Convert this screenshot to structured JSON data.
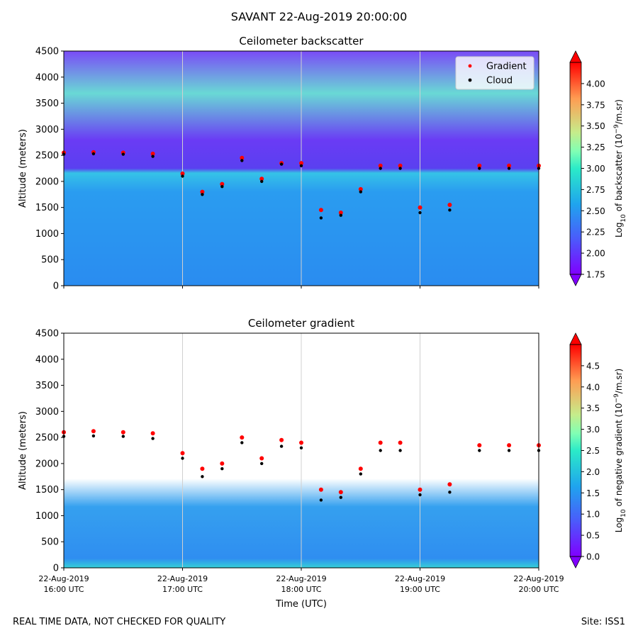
{
  "figure": {
    "suptitle": "SAVANT 22-Aug-2019 20:00:00",
    "footer_left": "REAL TIME DATA, NOT CHECKED FOR QUALITY",
    "footer_right": "Site: ISS1"
  },
  "chart_data": [
    {
      "type": "heatmap",
      "title": "Ceilometer backscatter",
      "xlabel": "",
      "ylabel": "Altitude (meters)",
      "ylim": [
        0,
        4500
      ],
      "yticks": [
        0,
        500,
        1000,
        1500,
        2000,
        2500,
        3000,
        3500,
        4000,
        4500
      ],
      "xlim": [
        "2019-08-22T16:00",
        "2019-08-22T20:00"
      ],
      "xtick_labels": [],
      "grid": "vertical lines at hourly ticks",
      "colormap": "rainbow",
      "colorbar": {
        "label": "Log10 of backscatter (10^-9/m.sr)",
        "range": [
          1.75,
          4.25
        ],
        "ticks": [
          "1.75",
          "2.00",
          "2.25",
          "2.50",
          "2.75",
          "3.00",
          "3.25",
          "3.50",
          "3.75",
          "4.00"
        ],
        "extend": "both"
      },
      "legend": {
        "placement": "upper-right",
        "entries": [
          {
            "name": "Gradient",
            "color": "#ff0000"
          },
          {
            "name": "Cloud",
            "color": "#000000"
          }
        ]
      },
      "series": [
        {
          "name": "Gradient",
          "color": "#ff0000",
          "points": [
            {
              "x": "16:00",
              "y": 2550
            },
            {
              "x": "16:15",
              "y": 2560
            },
            {
              "x": "16:30",
              "y": 2550
            },
            {
              "x": "16:45",
              "y": 2530
            },
            {
              "x": "17:00",
              "y": 2150
            },
            {
              "x": "17:10",
              "y": 1800
            },
            {
              "x": "17:20",
              "y": 1950
            },
            {
              "x": "17:30",
              "y": 2450
            },
            {
              "x": "17:40",
              "y": 2050
            },
            {
              "x": "17:50",
              "y": 2350
            },
            {
              "x": "18:00",
              "y": 2350
            },
            {
              "x": "18:10",
              "y": 1450
            },
            {
              "x": "18:20",
              "y": 1400
            },
            {
              "x": "18:30",
              "y": 1850
            },
            {
              "x": "18:40",
              "y": 2300
            },
            {
              "x": "18:50",
              "y": 2300
            },
            {
              "x": "19:00",
              "y": 1500
            },
            {
              "x": "19:15",
              "y": 1550
            },
            {
              "x": "19:30",
              "y": 2300
            },
            {
              "x": "19:45",
              "y": 2300
            },
            {
              "x": "20:00",
              "y": 2300
            }
          ]
        },
        {
          "name": "Cloud",
          "color": "#000000",
          "points": [
            {
              "x": "16:00",
              "y": 2520
            },
            {
              "x": "16:15",
              "y": 2530
            },
            {
              "x": "16:30",
              "y": 2520
            },
            {
              "x": "16:45",
              "y": 2480
            },
            {
              "x": "17:00",
              "y": 2100
            },
            {
              "x": "17:10",
              "y": 1750
            },
            {
              "x": "17:20",
              "y": 1900
            },
            {
              "x": "17:30",
              "y": 2400
            },
            {
              "x": "17:40",
              "y": 2000
            },
            {
              "x": "17:50",
              "y": 2330
            },
            {
              "x": "18:00",
              "y": 2300
            },
            {
              "x": "18:10",
              "y": 1300
            },
            {
              "x": "18:20",
              "y": 1350
            },
            {
              "x": "18:30",
              "y": 1800
            },
            {
              "x": "18:40",
              "y": 2250
            },
            {
              "x": "18:50",
              "y": 2250
            },
            {
              "x": "19:00",
              "y": 1400
            },
            {
              "x": "19:15",
              "y": 1450
            },
            {
              "x": "19:30",
              "y": 2250
            },
            {
              "x": "19:45",
              "y": 2250
            },
            {
              "x": "20:00",
              "y": 2250
            }
          ]
        }
      ]
    },
    {
      "type": "heatmap",
      "title": "Ceilometer gradient",
      "xlabel": "Time (UTC)",
      "ylabel": "Altitude (meters)",
      "ylim": [
        0,
        4500
      ],
      "yticks": [
        0,
        500,
        1000,
        1500,
        2000,
        2500,
        3000,
        3500,
        4000,
        4500
      ],
      "xlim": [
        "2019-08-22T16:00",
        "2019-08-22T20:00"
      ],
      "xtick_labels": [
        {
          "date": "22-Aug-2019",
          "time": "16:00 UTC"
        },
        {
          "date": "22-Aug-2019",
          "time": "17:00 UTC"
        },
        {
          "date": "22-Aug-2019",
          "time": "18:00 UTC"
        },
        {
          "date": "22-Aug-2019",
          "time": "19:00 UTC"
        },
        {
          "date": "22-Aug-2019",
          "time": "20:00 UTC"
        }
      ],
      "grid": "vertical lines at hourly ticks",
      "colormap": "rainbow",
      "colorbar": {
        "label": "Log10 of negative gradient (10^-9/m.sr)",
        "range": [
          0.0,
          5.0
        ],
        "ticks": [
          "0.0",
          "0.5",
          "1.0",
          "1.5",
          "2.0",
          "2.5",
          "3.0",
          "3.5",
          "4.0",
          "4.5"
        ],
        "extend": "both"
      },
      "series": [
        {
          "name": "Gradient",
          "color": "#ff0000",
          "points": [
            {
              "x": "16:00",
              "y": 2600
            },
            {
              "x": "16:15",
              "y": 2620
            },
            {
              "x": "16:30",
              "y": 2600
            },
            {
              "x": "16:45",
              "y": 2580
            },
            {
              "x": "17:00",
              "y": 2200
            },
            {
              "x": "17:10",
              "y": 1900
            },
            {
              "x": "17:20",
              "y": 2000
            },
            {
              "x": "17:30",
              "y": 2500
            },
            {
              "x": "17:40",
              "y": 2100
            },
            {
              "x": "17:50",
              "y": 2450
            },
            {
              "x": "18:00",
              "y": 2400
            },
            {
              "x": "18:10",
              "y": 1500
            },
            {
              "x": "18:20",
              "y": 1450
            },
            {
              "x": "18:30",
              "y": 1900
            },
            {
              "x": "18:40",
              "y": 2400
            },
            {
              "x": "18:50",
              "y": 2400
            },
            {
              "x": "19:00",
              "y": 1500
            },
            {
              "x": "19:15",
              "y": 1600
            },
            {
              "x": "19:30",
              "y": 2350
            },
            {
              "x": "19:45",
              "y": 2350
            },
            {
              "x": "20:00",
              "y": 2350
            }
          ]
        },
        {
          "name": "Cloud",
          "color": "#000000",
          "points": [
            {
              "x": "16:00",
              "y": 2520
            },
            {
              "x": "16:15",
              "y": 2530
            },
            {
              "x": "16:30",
              "y": 2520
            },
            {
              "x": "16:45",
              "y": 2480
            },
            {
              "x": "17:00",
              "y": 2100
            },
            {
              "x": "17:10",
              "y": 1750
            },
            {
              "x": "17:20",
              "y": 1900
            },
            {
              "x": "17:30",
              "y": 2400
            },
            {
              "x": "17:40",
              "y": 2000
            },
            {
              "x": "17:50",
              "y": 2330
            },
            {
              "x": "18:00",
              "y": 2300
            },
            {
              "x": "18:10",
              "y": 1300
            },
            {
              "x": "18:20",
              "y": 1350
            },
            {
              "x": "18:30",
              "y": 1800
            },
            {
              "x": "18:40",
              "y": 2250
            },
            {
              "x": "18:50",
              "y": 2250
            },
            {
              "x": "19:00",
              "y": 1400
            },
            {
              "x": "19:15",
              "y": 1450
            },
            {
              "x": "19:30",
              "y": 2250
            },
            {
              "x": "19:45",
              "y": 2250
            },
            {
              "x": "20:00",
              "y": 2250
            }
          ]
        }
      ]
    }
  ]
}
